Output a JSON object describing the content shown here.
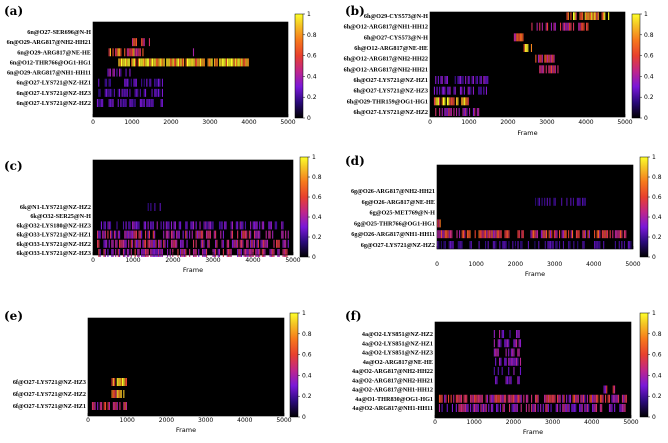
{
  "chart_data": [
    {
      "panel": "(a)",
      "type": "heatmap",
      "xlabel": "Frame",
      "xlim": [
        0,
        5000
      ],
      "x_ticks": [
        "0",
        "1000",
        "2000",
        "3000",
        "4000",
        "5000"
      ],
      "colorbar_ticks": [
        "0",
        "0.2",
        "0.4",
        "0.6",
        "0.8",
        "1"
      ],
      "rows": [
        "6n@O27-SER696@N-H",
        "6n@O29-ARG817@NH2-HH21",
        "6n@O29-ARG817@NE-HE",
        "6n@O12-THR766@OG1-HG1",
        "6n@O29-ARG817@NH1-HH11",
        "6n@O27-LYS721@NZ-HZ1",
        "6n@O27-LYS721@NZ-HZ3",
        "6n@O27-LYS721@NZ-HZ2"
      ],
      "occupancy": [
        {
          "row": 1,
          "x": [
            1000,
            1500
          ],
          "v": 0.55
        },
        {
          "row": 2,
          "x": [
            400,
            1300
          ],
          "v": 0.7
        },
        {
          "row": 2,
          "x": [
            2450,
            2600
          ],
          "v": 0.4
        },
        {
          "row": 3,
          "x": [
            650,
            4000
          ],
          "v": 0.95
        },
        {
          "row": 4,
          "x": [
            300,
            1000
          ],
          "v": 0.35
        },
        {
          "row": 5,
          "x": [
            100,
            1800
          ],
          "v": 0.25
        },
        {
          "row": 6,
          "x": [
            100,
            1800
          ],
          "v": 0.25
        },
        {
          "row": 7,
          "x": [
            100,
            1800
          ],
          "v": 0.25
        }
      ]
    },
    {
      "panel": "(b)",
      "type": "heatmap",
      "xlabel": "Frame",
      "xlim": [
        0,
        5000
      ],
      "x_ticks": [
        "0",
        "1000",
        "2000",
        "3000",
        "4000",
        "5000"
      ],
      "colorbar_ticks": [
        "0",
        "0.2",
        "0.4",
        "0.6",
        "0.8",
        "1"
      ],
      "rows": [
        "6h@O29-CYS573@N-H",
        "6h@O12-ARG817@NH1-HH12",
        "6h@O27-CYS573@N-H",
        "6h@O12-ARG817@NE-HE",
        "6h@O12-ARG817@NH2-HH22",
        "6h@O12-ARG817@NH2-HH21",
        "6h@O27-LYS721@NZ-HZ1",
        "6h@O27-LYS721@NZ-HZ3",
        "6h@O29-THR159@OG1-HG1",
        "6h@O27-LYS721@NZ-HZ2"
      ],
      "occupancy": [
        {
          "row": 0,
          "x": [
            3500,
            4600
          ],
          "v": 0.85
        },
        {
          "row": 1,
          "x": [
            2600,
            4100
          ],
          "v": 0.5
        },
        {
          "row": 2,
          "x": [
            2150,
            2400
          ],
          "v": 0.6
        },
        {
          "row": 3,
          "x": [
            2400,
            2650
          ],
          "v": 0.8
        },
        {
          "row": 4,
          "x": [
            2700,
            3200
          ],
          "v": 0.6
        },
        {
          "row": 5,
          "x": [
            2800,
            3300
          ],
          "v": 0.5
        },
        {
          "row": 6,
          "x": [
            100,
            1500
          ],
          "v": 0.3
        },
        {
          "row": 7,
          "x": [
            100,
            1500
          ],
          "v": 0.3
        },
        {
          "row": 8,
          "x": [
            100,
            1000
          ],
          "v": 0.85
        },
        {
          "row": 9,
          "x": [
            100,
            1300
          ],
          "v": 0.4
        }
      ]
    },
    {
      "panel": "(c)",
      "type": "heatmap",
      "xlabel": "Frame",
      "xlim": [
        0,
        5000
      ],
      "x_ticks": [
        "0",
        "1000",
        "2000",
        "3000",
        "4000",
        "5000"
      ],
      "colorbar_ticks": [
        "0",
        "0.2",
        "0.4",
        "0.6",
        "0.8",
        "1"
      ],
      "rows": [
        "6k@N1-LYS721@NZ-HZ2",
        "6k@O32-SER25@N-H",
        "6k@O32-LYS180@NZ-HZ3",
        "6k@O33-LYS721@NZ-HZ1",
        "6k@O33-LYS721@NZ-HZ2",
        "6k@O33-LYS721@NZ-HZ3"
      ],
      "occupancy": [
        {
          "row": 0,
          "x": [
            1300,
            1700
          ],
          "v": 0.25
        },
        {
          "row": 2,
          "x": [
            100,
            4900
          ],
          "v": 0.3
        },
        {
          "row": 3,
          "x": [
            100,
            4900
          ],
          "v": 0.45
        },
        {
          "row": 4,
          "x": [
            100,
            4900
          ],
          "v": 0.45
        },
        {
          "row": 5,
          "x": [
            100,
            4900
          ],
          "v": 0.45
        }
      ]
    },
    {
      "panel": "(d)",
      "type": "heatmap",
      "xlabel": "Frame",
      "xlim": [
        0,
        5000
      ],
      "x_ticks": [
        "0",
        "1000",
        "2000",
        "3000",
        "4000",
        "5000"
      ],
      "colorbar_ticks": [
        "0",
        "0.2",
        "0.4",
        "0.6",
        "0.8",
        "1"
      ],
      "rows": [
        "6g@O26-ARG817@NH2-HH21",
        "6g@O26-ARG817@NE-HE",
        "6g@O25-MET769@N-H",
        "6g@O25-THR766@OG1-HG1",
        "6g@O26-ARG817@NH1-HH11",
        "6g@O27-LYS721@NZ-HZ2"
      ],
      "occupancy": [
        {
          "row": 1,
          "x": [
            2500,
            3800
          ],
          "v": 0.2
        },
        {
          "row": 3,
          "x": [
            0,
            100
          ],
          "v": 0.6
        },
        {
          "row": 4,
          "x": [
            0,
            5000
          ],
          "v": 0.55
        },
        {
          "row": 5,
          "x": [
            0,
            5000
          ],
          "v": 0.2
        }
      ]
    },
    {
      "panel": "(e)",
      "type": "heatmap",
      "xlabel": "Frame",
      "xlim": [
        0,
        5000
      ],
      "x_ticks": [
        "0",
        "1000",
        "2000",
        "3000",
        "4000",
        "5000"
      ],
      "colorbar_ticks": [
        "0",
        "0.2",
        "0.4",
        "0.6",
        "0.8",
        "1"
      ],
      "rows": [
        "6f@O27-LYS721@NZ-HZ3",
        "6f@O27-LYS721@NZ-HZ2",
        "6f@O27-LYS721@NZ-HZ1"
      ],
      "occupancy": [
        {
          "row": 0,
          "x": [
            600,
            1000
          ],
          "v": 0.85
        },
        {
          "row": 1,
          "x": [
            600,
            1000
          ],
          "v": 0.75
        },
        {
          "row": 2,
          "x": [
            100,
            1000
          ],
          "v": 0.55
        }
      ]
    },
    {
      "panel": "(f)",
      "type": "heatmap",
      "xlabel": "Frame",
      "xlim": [
        0,
        5000
      ],
      "x_ticks": [
        "0",
        "1000",
        "2000",
        "3000",
        "4000",
        "5000"
      ],
      "colorbar_ticks": [
        "0",
        "0.2",
        "0.4",
        "0.6",
        "0.8",
        "1"
      ],
      "rows": [
        "4a@O2-LYS851@NZ-HZ2",
        "4a@O2-LYS851@NZ-HZ1",
        "4a@O2-LYS851@NZ-HZ3",
        "4a@O2-ARG817@NE-HE",
        "4a@O2-ARG817@NH2-HH22",
        "4a@O2-ARG817@NH2-HH21",
        "4a@O2-ARG817@NH1-HH12",
        "4a@O1-THR830@OG1-HG1",
        "4a@O2-ARG817@NH1-HH11"
      ],
      "occupancy": [
        {
          "row": 0,
          "x": [
            1500,
            2200
          ],
          "v": 0.35
        },
        {
          "row": 1,
          "x": [
            1500,
            2200
          ],
          "v": 0.35
        },
        {
          "row": 2,
          "x": [
            1500,
            2200
          ],
          "v": 0.35
        },
        {
          "row": 3,
          "x": [
            1500,
            2200
          ],
          "v": 0.35
        },
        {
          "row": 4,
          "x": [
            1500,
            2200
          ],
          "v": 0.35
        },
        {
          "row": 5,
          "x": [
            1500,
            2200
          ],
          "v": 0.3
        },
        {
          "row": 6,
          "x": [
            4300,
            4600
          ],
          "v": 0.45
        },
        {
          "row": 7,
          "x": [
            100,
            4900
          ],
          "v": 0.5
        },
        {
          "row": 8,
          "x": [
            100,
            4900
          ],
          "v": 0.4
        }
      ]
    }
  ]
}
